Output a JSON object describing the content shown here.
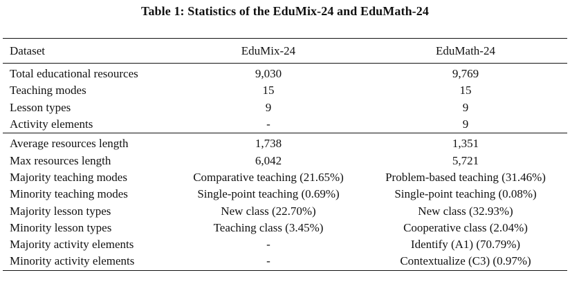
{
  "caption": "Table 1: Statistics of the EduMix-24 and EduMath-24",
  "columns": [
    "Dataset",
    "EduMix-24",
    "EduMath-24"
  ],
  "group1": [
    [
      "Total educational resources",
      "9,030",
      "9,769"
    ],
    [
      "Teaching modes",
      "15",
      "15"
    ],
    [
      "Lesson types",
      "9",
      "9"
    ],
    [
      "Activity elements",
      "-",
      "9"
    ]
  ],
  "group2": [
    [
      "Average resources length",
      "1,738",
      "1,351"
    ],
    [
      "Max resources length",
      "6,042",
      "5,721"
    ],
    [
      "Majority teaching modes",
      "Comparative teaching (21.65%)",
      "Problem-based teaching (31.46%)"
    ],
    [
      "Minority teaching modes",
      "Single-point teaching (0.69%)",
      "Single-point teaching (0.08%)"
    ],
    [
      "Majority lesson types",
      "New class (22.70%)",
      "New class (32.93%)"
    ],
    [
      "Minority lesson types",
      "Teaching class (3.45%)",
      "Cooperative class (2.04%)"
    ],
    [
      "Majority activity elements",
      "-",
      "Identify (A1) (70.79%)"
    ],
    [
      "Minority activity elements",
      "-",
      "Contextualize (C3) (0.97%)"
    ]
  ]
}
